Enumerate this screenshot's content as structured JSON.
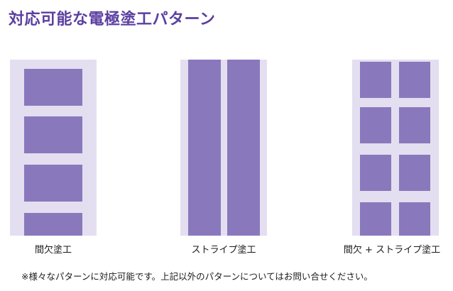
{
  "title": "対応可能な電極塗工パターン",
  "patterns": [
    {
      "label": "間欠塗工"
    },
    {
      "label": "ストライプ塗工"
    },
    {
      "label": "間欠 + ストライプ塗工"
    }
  ],
  "note": "※様々なパターンに対応可能です。上記以外のパターンについてはお問い合せください。",
  "colors": {
    "title": "#5b3fa0",
    "substrate": "#e3dff0",
    "coating": "#8a78bd"
  }
}
